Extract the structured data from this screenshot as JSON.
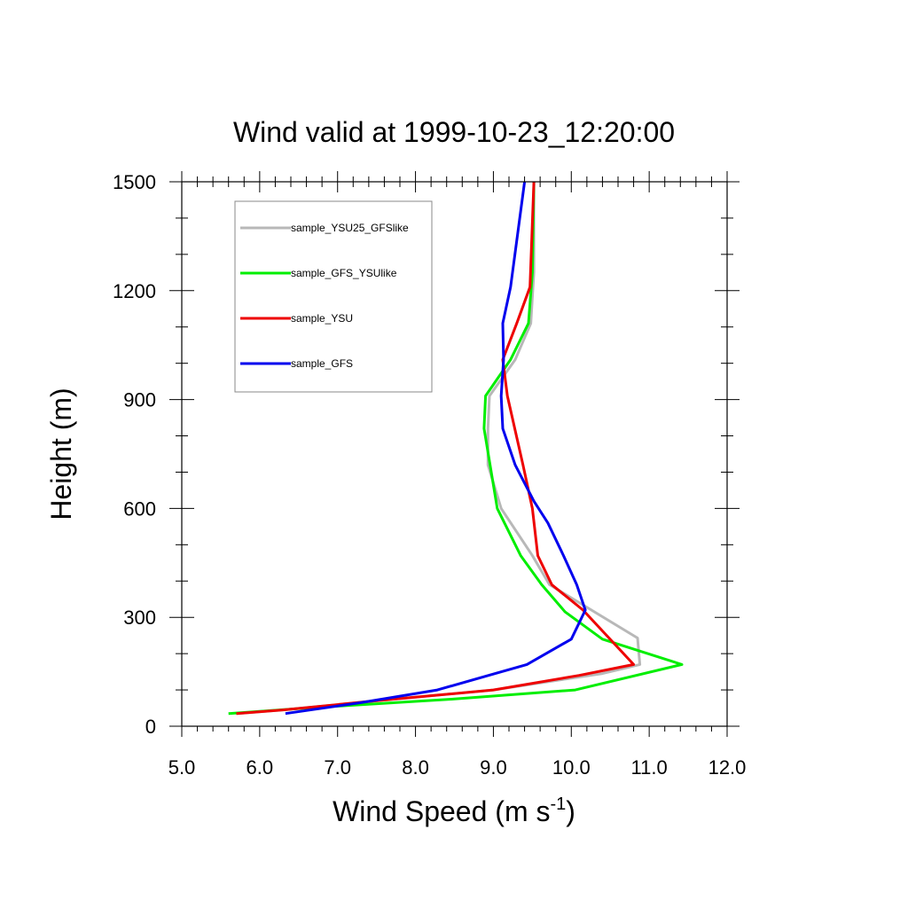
{
  "chart_data": {
    "type": "line",
    "title": "Wind valid at 1999-10-23_12:20:00",
    "xlabel": "Wind Speed (m s",
    "xlabel_sup": "-1",
    "xlabel_end": ")",
    "ylabel": "Height (m)",
    "xlim": [
      5.0,
      12.0
    ],
    "ylim": [
      0,
      1500
    ],
    "xticks": [
      "5.0",
      "6.0",
      "7.0",
      "8.0",
      "9.0",
      "10.0",
      "11.0",
      "12.0"
    ],
    "yticks": [
      "0",
      "300",
      "600",
      "900",
      "1200",
      "1500"
    ],
    "grid": false,
    "legend_position": "top-left",
    "series": [
      {
        "name": "sample_YSU25_GFSlike",
        "color": "#b8b8b8",
        "points": [
          [
            5.7,
            35
          ],
          [
            6.3,
            45
          ],
          [
            7.5,
            70
          ],
          [
            9.0,
            100
          ],
          [
            10.4,
            145
          ],
          [
            10.88,
            170
          ],
          [
            10.85,
            243
          ],
          [
            9.72,
            390
          ],
          [
            9.5,
            470
          ],
          [
            9.1,
            600
          ],
          [
            8.93,
            720
          ],
          [
            8.93,
            820
          ],
          [
            8.95,
            910
          ],
          [
            9.28,
            1010
          ],
          [
            9.48,
            1110
          ],
          [
            9.52,
            1250
          ],
          [
            9.52,
            1500
          ]
        ]
      },
      {
        "name": "sample_GFS_YSUlike",
        "color": "#00ee00",
        "points": [
          [
            5.6,
            35
          ],
          [
            6.6,
            50
          ],
          [
            8.5,
            75
          ],
          [
            10.05,
            100
          ],
          [
            11.42,
            170
          ],
          [
            10.4,
            240
          ],
          [
            9.92,
            315
          ],
          [
            9.62,
            390
          ],
          [
            9.35,
            470
          ],
          [
            9.05,
            600
          ],
          [
            8.88,
            820
          ],
          [
            8.9,
            910
          ],
          [
            9.22,
            1010
          ],
          [
            9.45,
            1110
          ],
          [
            9.5,
            1250
          ],
          [
            9.52,
            1500
          ]
        ]
      },
      {
        "name": "sample_YSU",
        "color": "#ee0000",
        "points": [
          [
            5.7,
            35
          ],
          [
            6.3,
            45
          ],
          [
            7.5,
            70
          ],
          [
            9.0,
            100
          ],
          [
            10.1,
            140
          ],
          [
            10.8,
            170
          ],
          [
            10.15,
            320
          ],
          [
            9.75,
            390
          ],
          [
            9.57,
            470
          ],
          [
            9.5,
            600
          ],
          [
            9.38,
            720
          ],
          [
            9.18,
            910
          ],
          [
            9.12,
            1010
          ],
          [
            9.3,
            1110
          ],
          [
            9.47,
            1210
          ],
          [
            9.52,
            1500
          ]
        ]
      },
      {
        "name": "sample_GFS",
        "color": "#0000ee",
        "points": [
          [
            6.33,
            35
          ],
          [
            7.3,
            65
          ],
          [
            8.28,
            100
          ],
          [
            9.43,
            170
          ],
          [
            10.0,
            240
          ],
          [
            10.18,
            320
          ],
          [
            10.07,
            390
          ],
          [
            9.9,
            470
          ],
          [
            9.7,
            560
          ],
          [
            9.52,
            620
          ],
          [
            9.28,
            720
          ],
          [
            9.12,
            820
          ],
          [
            9.1,
            910
          ],
          [
            9.13,
            1010
          ],
          [
            9.12,
            1110
          ],
          [
            9.22,
            1210
          ],
          [
            9.4,
            1500
          ]
        ]
      }
    ]
  }
}
